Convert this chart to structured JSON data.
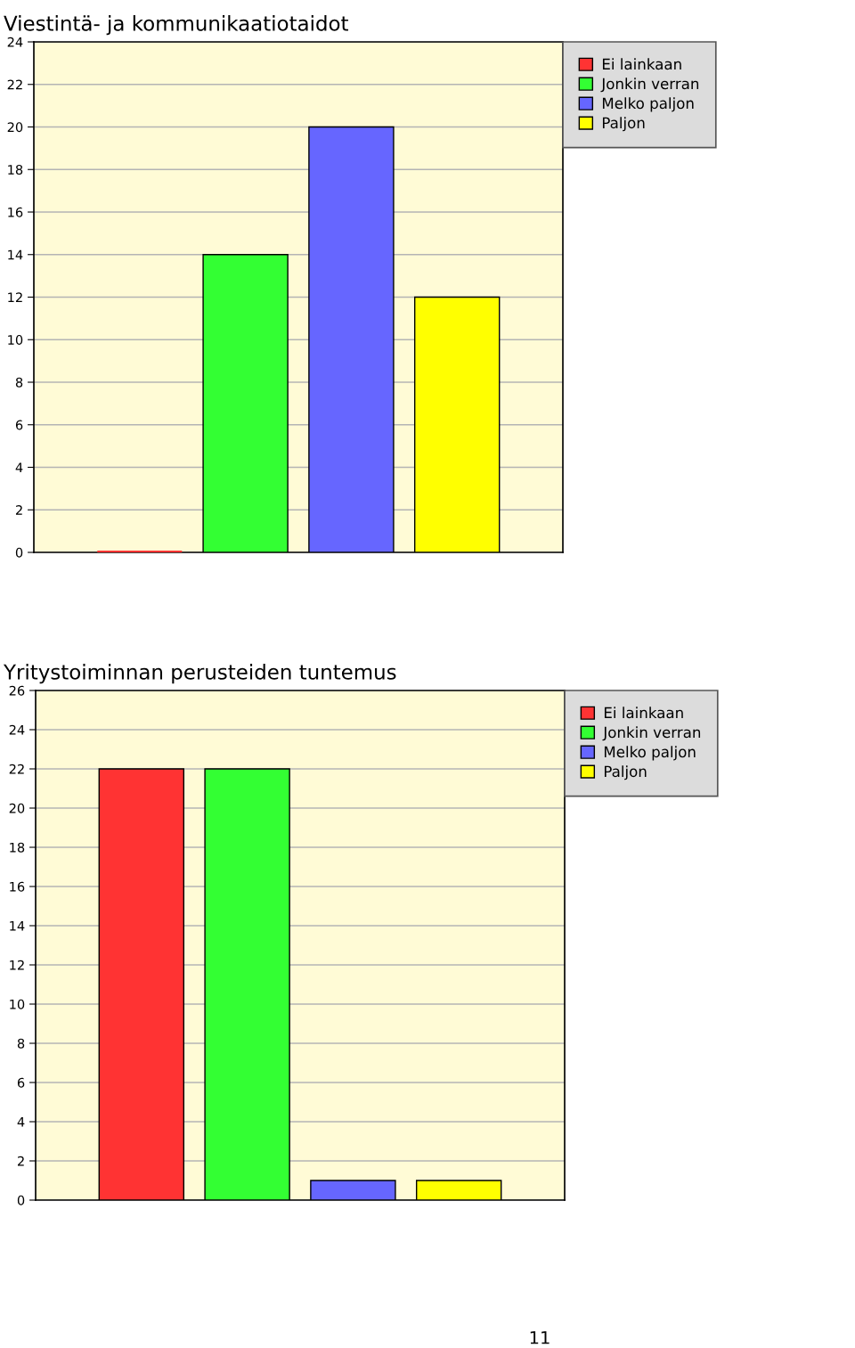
{
  "chart_data": [
    {
      "type": "bar",
      "title": "Viestintä- ja kommunikaatiotaidot",
      "categories": [
        null
      ],
      "series": [
        {
          "name": "Ei lainkaan",
          "color": "#ff3333",
          "values": [
            0
          ]
        },
        {
          "name": "Jonkin verran",
          "color": "#33ff33",
          "values": [
            14
          ]
        },
        {
          "name": "Melko paljon",
          "color": "#6666ff",
          "values": [
            20
          ]
        },
        {
          "name": "Paljon",
          "color": "#ffff00",
          "values": [
            12
          ]
        }
      ],
      "ylim": [
        0,
        24
      ],
      "yticks": [
        0,
        2,
        4,
        6,
        8,
        10,
        12,
        14,
        16,
        18,
        20,
        22,
        24
      ],
      "grid": "y",
      "legend": "top right",
      "tick_labels": "y"
    },
    {
      "type": "bar",
      "title": "Yritystoiminnan perusteiden tuntemus",
      "categories": [
        null
      ],
      "series": [
        {
          "name": "Ei lainkaan",
          "color": "#ff3333",
          "values": [
            22
          ]
        },
        {
          "name": "Jonkin verran",
          "color": "#33ff33",
          "values": [
            22
          ]
        },
        {
          "name": "Melko paljon",
          "color": "#6666ff",
          "values": [
            1
          ]
        },
        {
          "name": "Paljon",
          "color": "#ffff00",
          "values": [
            1
          ]
        }
      ],
      "ylim": [
        0,
        26
      ],
      "yticks": [
        0,
        2,
        4,
        6,
        8,
        10,
        12,
        14,
        16,
        18,
        20,
        22,
        24,
        26
      ],
      "grid": "y",
      "legend": "top right",
      "tick_labels": "y",
      "annotations": [
        "11"
      ]
    }
  ]
}
